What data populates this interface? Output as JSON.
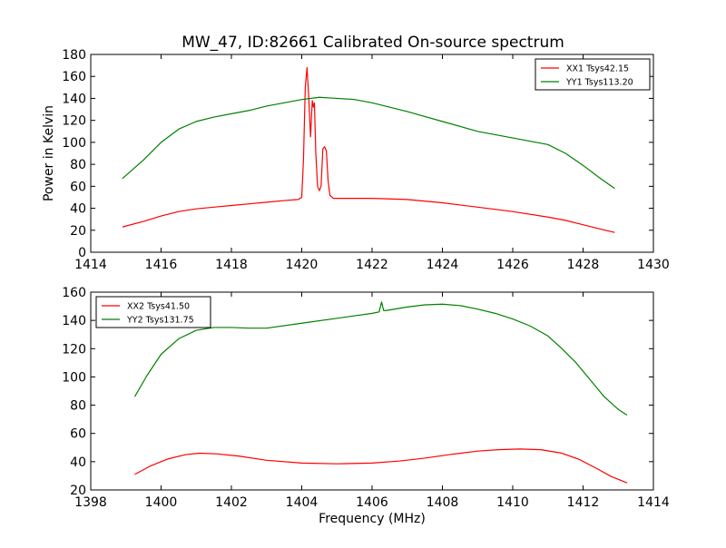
{
  "title": "MW_47, ID:82661 Calibrated On-source spectrum",
  "xlabel": "Frequency (MHz)",
  "ylabel": "Power in Kelvin",
  "chart_data": [
    {
      "type": "line",
      "title": "MW_47, ID:82661 Calibrated On-source spectrum",
      "xlabel": "",
      "ylabel": "Power in Kelvin",
      "xlim": [
        1414,
        1430
      ],
      "ylim": [
        0,
        180
      ],
      "xticks": [
        1414,
        1416,
        1418,
        1420,
        1422,
        1424,
        1426,
        1428,
        1430
      ],
      "yticks": [
        0,
        20,
        40,
        60,
        80,
        100,
        120,
        140,
        160,
        180
      ],
      "grid": false,
      "legend_position": "top-right",
      "series": [
        {
          "name": "XX1 Tsys42.15",
          "color": "#ff0000",
          "x": [
            1414.9,
            1415.5,
            1416,
            1416.5,
            1417,
            1417.5,
            1418,
            1418.5,
            1419,
            1419.5,
            1419.9,
            1420.0,
            1420.05,
            1420.1,
            1420.15,
            1420.2,
            1420.25,
            1420.3,
            1420.33,
            1420.36,
            1420.4,
            1420.45,
            1420.5,
            1420.55,
            1420.6,
            1420.65,
            1420.7,
            1420.75,
            1420.8,
            1420.9,
            1421,
            1422,
            1423,
            1424,
            1425,
            1426,
            1427,
            1427.5,
            1428,
            1428.5,
            1428.9
          ],
          "y": [
            23,
            28,
            33,
            37,
            39.5,
            41,
            42.5,
            44,
            45.5,
            47,
            48,
            50,
            85,
            150,
            168,
            140,
            105,
            138,
            132,
            136,
            90,
            60,
            56,
            60,
            94,
            96,
            92,
            65,
            52,
            49,
            49,
            49,
            48,
            45,
            41,
            37,
            32,
            29,
            25,
            21,
            18
          ]
        },
        {
          "name": "YY1 Tsys113.20",
          "color": "#008000",
          "x": [
            1414.9,
            1415.5,
            1416,
            1416.5,
            1417,
            1417.5,
            1418,
            1418.5,
            1419,
            1419.5,
            1420,
            1420.5,
            1421,
            1421.5,
            1422,
            1423,
            1424,
            1425,
            1426,
            1427,
            1427.5,
            1428,
            1428.5,
            1428.9
          ],
          "y": [
            67,
            84,
            100,
            112,
            119,
            123,
            126,
            129,
            133,
            136,
            139,
            141,
            140,
            139,
            136,
            128,
            119,
            110,
            104,
            98,
            90,
            79,
            67,
            58
          ]
        }
      ]
    },
    {
      "type": "line",
      "title": "",
      "xlabel": "Frequency (MHz)",
      "ylabel": "",
      "xlim": [
        1398,
        1414
      ],
      "ylim": [
        20,
        160
      ],
      "xticks": [
        1398,
        1400,
        1402,
        1404,
        1406,
        1408,
        1410,
        1412,
        1414
      ],
      "yticks": [
        20,
        40,
        60,
        80,
        100,
        120,
        140,
        160
      ],
      "grid": false,
      "legend_position": "top-left",
      "series": [
        {
          "name": "XX2 Tsys41.50",
          "color": "#ff0000",
          "x": [
            1399.25,
            1399.7,
            1400.2,
            1400.7,
            1401.1,
            1401.6,
            1402.2,
            1403,
            1404,
            1405,
            1406,
            1406.8,
            1407.5,
            1408.2,
            1409,
            1409.6,
            1410.2,
            1410.8,
            1411.4,
            1411.9,
            1412.4,
            1412.8,
            1413.25
          ],
          "y": [
            31,
            37,
            42,
            45,
            46,
            45.5,
            44,
            41,
            39,
            38.5,
            39,
            40.5,
            42.5,
            45,
            47.5,
            48.5,
            49,
            48.5,
            46,
            41.5,
            35,
            29.5,
            25
          ]
        },
        {
          "name": "YY2 Tsys131.75",
          "color": "#008000",
          "x": [
            1399.25,
            1399.6,
            1400,
            1400.5,
            1401,
            1401.5,
            1402,
            1402.5,
            1403,
            1404,
            1405,
            1406,
            1406.2,
            1406.27,
            1406.33,
            1406.4,
            1407,
            1407.5,
            1408,
            1408.5,
            1409,
            1409.5,
            1410,
            1410.5,
            1411,
            1411.4,
            1411.8,
            1412.2,
            1412.6,
            1413,
            1413.25
          ],
          "y": [
            86,
            101,
            116,
            127,
            133,
            135,
            135,
            134.5,
            134.5,
            138,
            141.5,
            145,
            146,
            153,
            147,
            147,
            149.5,
            151,
            151.5,
            150.5,
            148,
            145,
            141,
            136,
            129,
            120,
            110,
            98,
            86,
            77,
            73
          ]
        }
      ]
    }
  ]
}
